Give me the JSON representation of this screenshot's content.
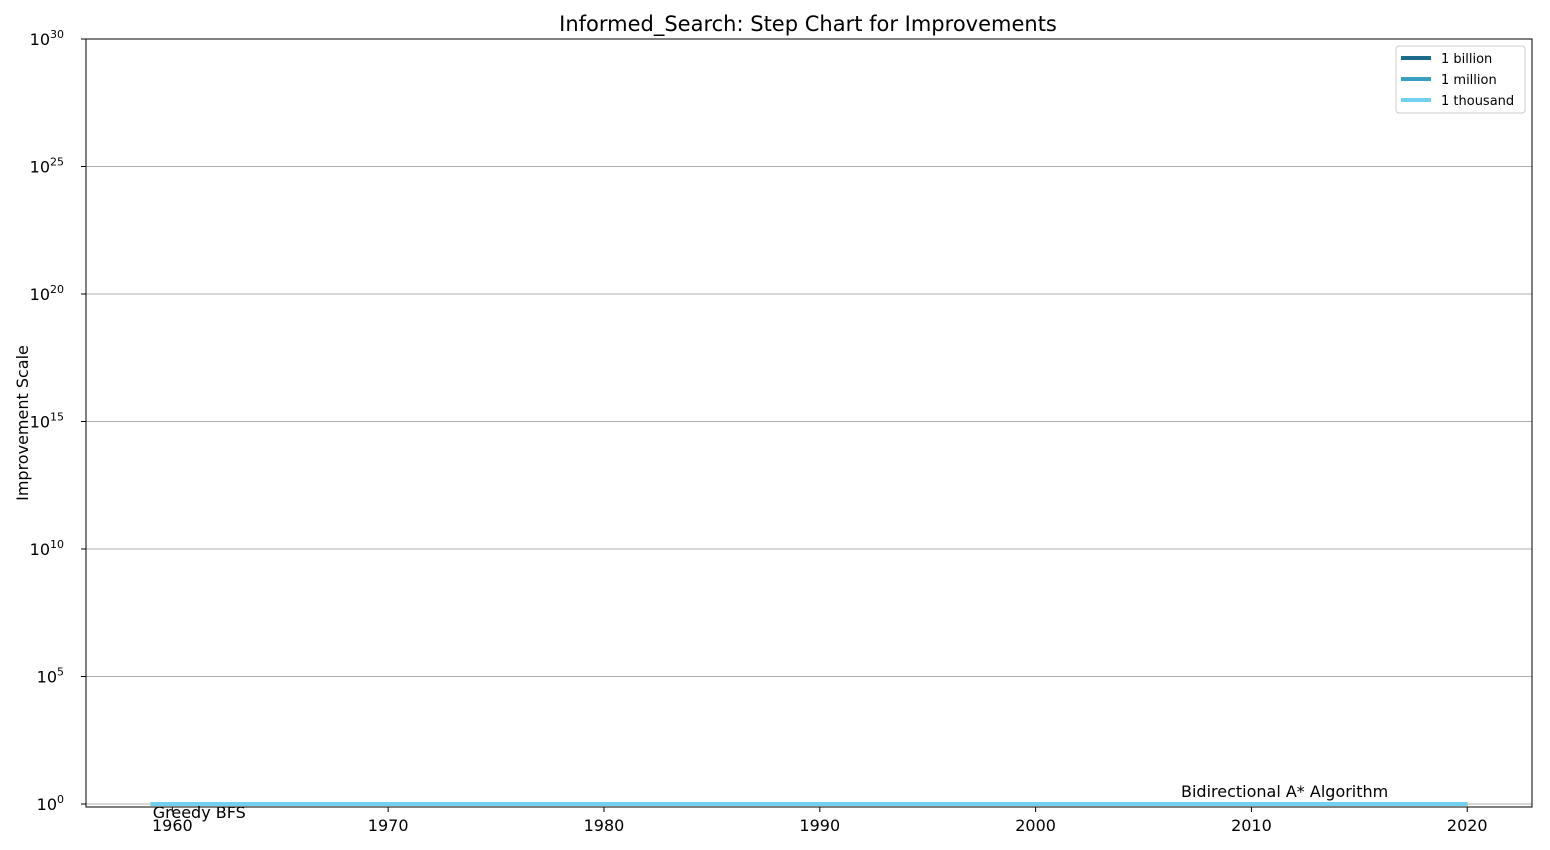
{
  "chart_data": {
    "type": "line",
    "title": "Informed_Search: Step Chart for Improvements",
    "xlabel": "",
    "ylabel": "Improvement Scale",
    "y_scale": "log",
    "x_range": [
      1956,
      2023
    ],
    "y_range_exponent": [
      0,
      30
    ],
    "x_ticks": [
      "1960",
      "1970",
      "1980",
      "1990",
      "2000",
      "2010",
      "2020"
    ],
    "y_ticks": [
      {
        "base": "10",
        "exp": "0"
      },
      {
        "base": "10",
        "exp": "5"
      },
      {
        "base": "10",
        "exp": "10"
      },
      {
        "base": "10",
        "exp": "15"
      },
      {
        "base": "10",
        "exp": "20"
      },
      {
        "base": "10",
        "exp": "25"
      },
      {
        "base": "10",
        "exp": "30"
      }
    ],
    "grid": "horizontal",
    "legend_position": "top-right",
    "series": [
      {
        "name": "1 billion",
        "color": "#1b6b8a",
        "x": [
          1959,
          2020
        ],
        "y": [
          1,
          1
        ],
        "style": "step"
      },
      {
        "name": "1 million",
        "color": "#3aa0bf",
        "x": [
          1959,
          2020
        ],
        "y": [
          1,
          1
        ],
        "style": "step"
      },
      {
        "name": "1 thousand",
        "color": "#74d0f1",
        "x": [
          1959,
          2020
        ],
        "y": [
          1,
          1
        ],
        "style": "step"
      }
    ],
    "annotations": [
      {
        "text": "Greedy BFS",
        "x": 1959,
        "y": 1
      },
      {
        "text": "Bidirectional A* Algorithm",
        "x": 2020,
        "y": 1
      }
    ]
  }
}
